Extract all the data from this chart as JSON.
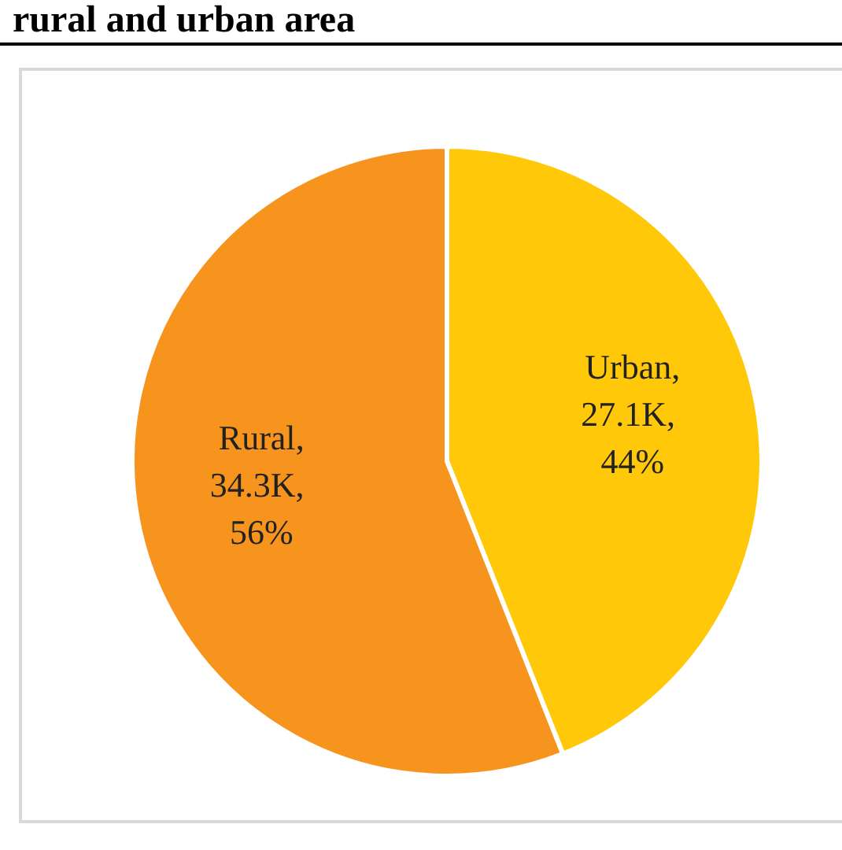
{
  "chart_data": {
    "type": "pie",
    "title": "rural and urban area",
    "categories": [
      "Urban",
      "Rural"
    ],
    "values": [
      44,
      56
    ],
    "value_labels": [
      ", 27.1K, 44%",
      ", 34.3K, 56%"
    ],
    "colors": [
      "#ffc90a",
      "#f7941e"
    ]
  }
}
